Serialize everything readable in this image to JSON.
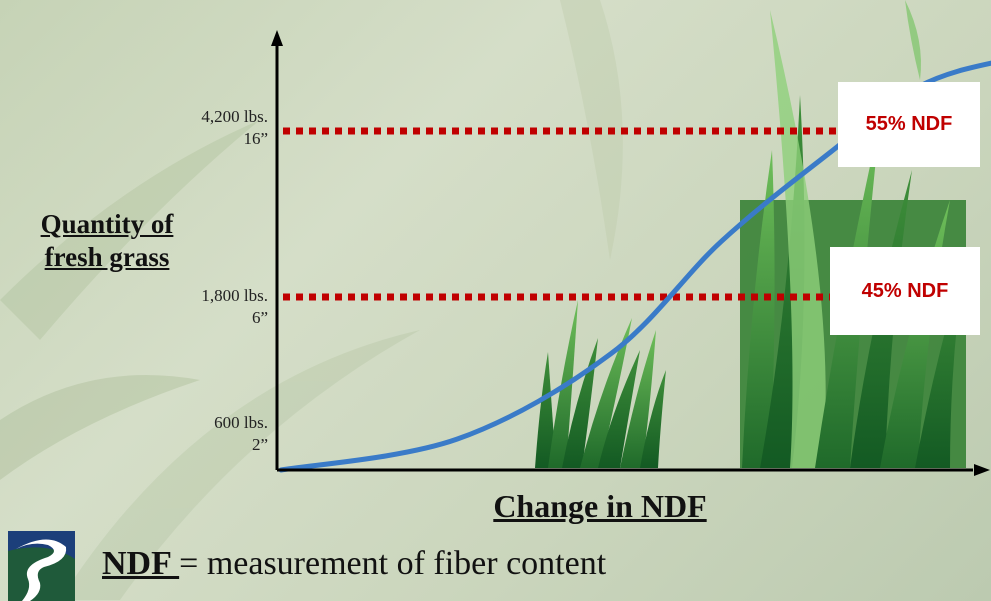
{
  "chart_data": {
    "type": "line",
    "title": "",
    "xlabel": "Change in NDF",
    "ylabel": "Quantity of fresh grass",
    "yticks": [
      {
        "quantity": "600 lbs.",
        "height": "2”",
        "value": 600
      },
      {
        "quantity": "1,800 lbs.",
        "height": "6”",
        "value": 1800
      },
      {
        "quantity": "4,200 lbs.",
        "height": "16”",
        "value": 4200
      }
    ],
    "reference_lines": [
      {
        "label": "55% NDF",
        "value": 4200,
        "color": "#c00000"
      },
      {
        "label": "45% NDF",
        "value": 1800,
        "color": "#c00000"
      }
    ],
    "series": [
      {
        "color": "#3a7bc8",
        "points": [
          [
            0,
            0
          ],
          [
            0.16,
            500
          ],
          [
            0.3,
            1300
          ],
          [
            0.4,
            2600
          ],
          [
            0.5,
            3900
          ],
          [
            0.58,
            4700
          ],
          [
            0.66,
            5000
          ],
          [
            0.74,
            5130
          ],
          [
            0.8,
            5170
          ]
        ]
      }
    ],
    "axis_color": "#000000"
  },
  "footnote": {
    "term": "NDF ",
    "equals": "=",
    "definition": " measurement of fiber content"
  }
}
